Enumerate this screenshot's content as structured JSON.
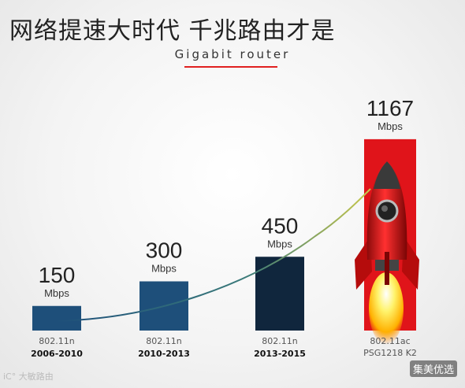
{
  "header": {
    "title": "网络提速大时代 千兆路由才是",
    "subtitle": "Gigabit router"
  },
  "colors": {
    "bar_light": "#1e4f7a",
    "bar_dark": "#10263d",
    "highlight": "#e0141a",
    "accent_line": "#e02020"
  },
  "chart_data": {
    "type": "bar",
    "categories": [
      "2006-2010",
      "2010-2013",
      "2013-2015",
      ""
    ],
    "standards": [
      "802.11n",
      "802.11n",
      "802.11n",
      "802.11ac"
    ],
    "models": [
      "",
      "",
      "",
      "PSG1218 K2"
    ],
    "values": [
      150,
      300,
      450,
      1167
    ],
    "unit": "Mbps",
    "ylim": [
      0,
      1200
    ],
    "grid": false,
    "highlight_index": 3
  },
  "watermarks": {
    "left": "iC° 大敏路由",
    "right": "集美优选"
  }
}
